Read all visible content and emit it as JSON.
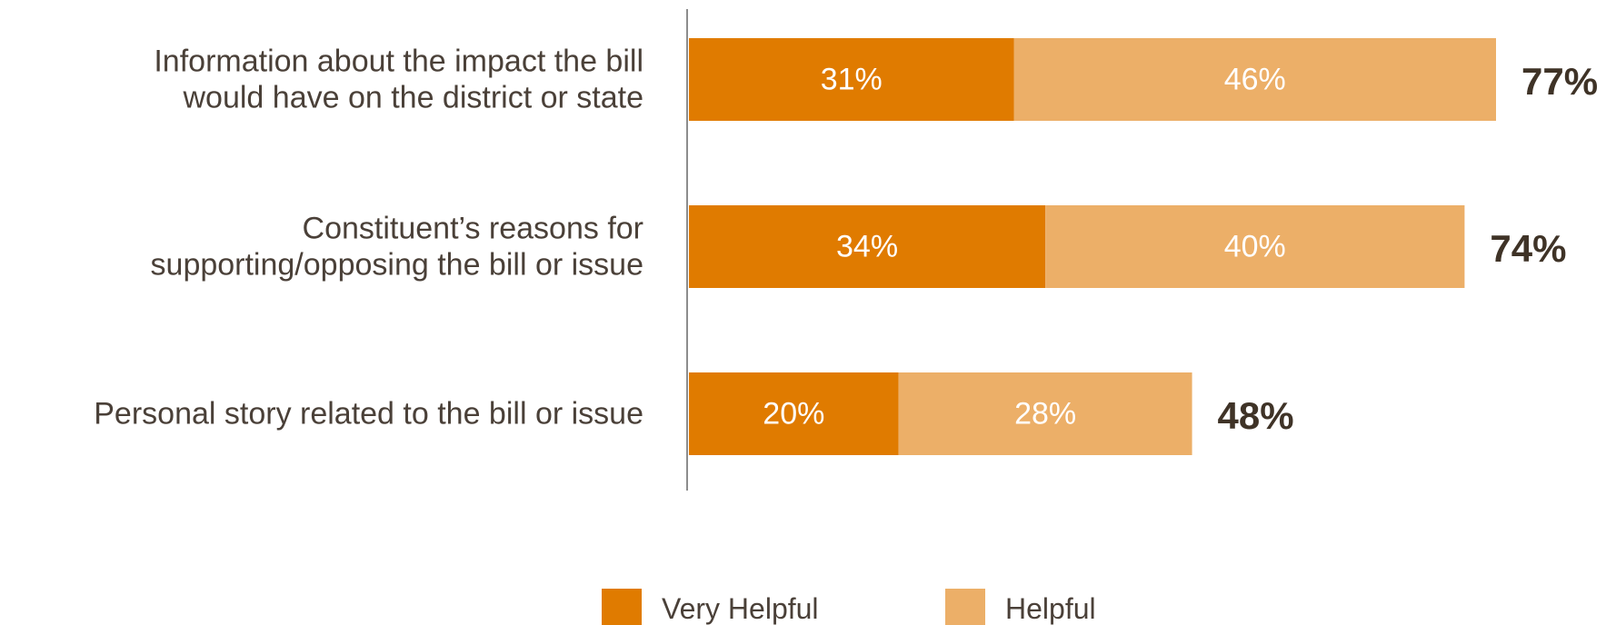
{
  "chart_data": {
    "type": "bar",
    "orientation": "horizontal",
    "stacked": true,
    "categories": [
      [
        "Information about the impact the bill",
        "would have on the district or state"
      ],
      [
        "Constituent’s reasons for",
        "supporting/opposing the bill or issue"
      ],
      [
        "Personal story related to the bill or issue"
      ]
    ],
    "series": [
      {
        "name": "Very Helpful",
        "color": "#e07b00",
        "values": [
          31,
          34,
          20
        ],
        "labels": [
          "31%",
          "34%",
          "20%"
        ]
      },
      {
        "name": "Helpful",
        "color": "#ecaf68",
        "values": [
          46,
          40,
          28
        ],
        "labels": [
          "46%",
          "40%",
          "28%"
        ]
      }
    ],
    "totals": [
      77,
      74,
      48
    ],
    "total_labels": [
      "77%",
      "74%",
      "48%"
    ],
    "xlim": [
      0,
      77
    ],
    "grid": false,
    "legend_position": "bottom-center",
    "title": "",
    "xlabel": "",
    "ylabel": ""
  }
}
